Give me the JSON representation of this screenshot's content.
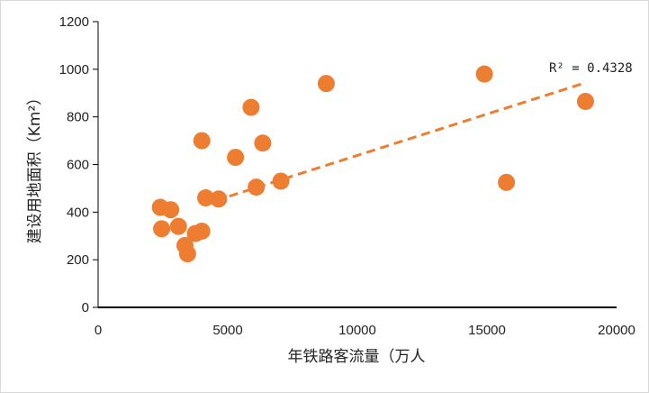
{
  "chart_data": {
    "type": "scatter",
    "xlabel": "年铁路客流量（万人",
    "ylabel": "建设用地面积（Km²）",
    "xlim": [
      0,
      20000
    ],
    "ylim": [
      0,
      1200
    ],
    "x_ticks": [
      "0",
      "5000",
      "10000",
      "15000",
      "20000"
    ],
    "y_ticks": [
      "0",
      "200",
      "400",
      "600",
      "800",
      "1000",
      "1200"
    ],
    "grid": false,
    "points": [
      {
        "x": 2400,
        "y": 420
      },
      {
        "x": 2450,
        "y": 330
      },
      {
        "x": 2800,
        "y": 410
      },
      {
        "x": 3100,
        "y": 340
      },
      {
        "x": 3350,
        "y": 260
      },
      {
        "x": 3450,
        "y": 225
      },
      {
        "x": 3750,
        "y": 310
      },
      {
        "x": 4000,
        "y": 320
      },
      {
        "x": 4000,
        "y": 700
      },
      {
        "x": 4150,
        "y": 460
      },
      {
        "x": 4650,
        "y": 455
      },
      {
        "x": 5300,
        "y": 630
      },
      {
        "x": 5900,
        "y": 840
      },
      {
        "x": 6100,
        "y": 505
      },
      {
        "x": 6350,
        "y": 690
      },
      {
        "x": 7050,
        "y": 530
      },
      {
        "x": 8800,
        "y": 940
      },
      {
        "x": 14900,
        "y": 980
      },
      {
        "x": 15750,
        "y": 525
      },
      {
        "x": 18800,
        "y": 865
      }
    ],
    "trendline": {
      "style": "dashed",
      "x": [
        4000,
        18700
      ],
      "y": [
        430,
        940
      ]
    },
    "annotation": "R² = 0.4328",
    "colors": {
      "points": "#ED7D31",
      "trendline": "#ED7D31",
      "axis": "#000000"
    }
  }
}
